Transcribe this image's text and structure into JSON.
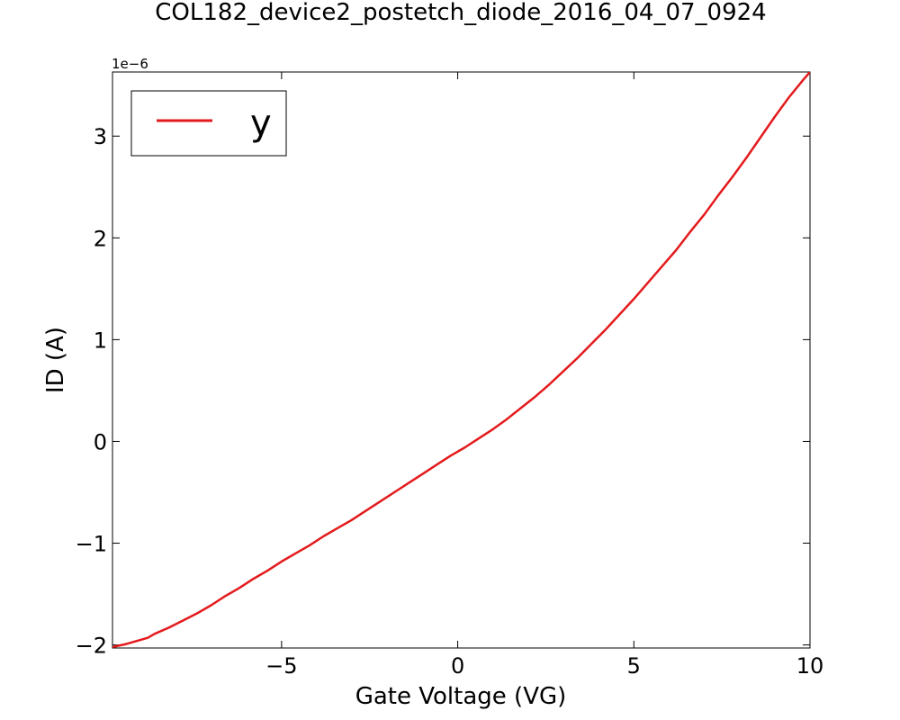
{
  "chart_data": {
    "type": "line",
    "title": "COL182_device2_postetch_diode_2016_04_07_0924",
    "xlabel": "Gate Voltage (VG)",
    "ylabel": "ID (A)",
    "y_offset_label": "1e−6",
    "xlim": [
      -9.8,
      10
    ],
    "ylim": [
      -2.03,
      3.63
    ],
    "y_scale_factor": 1e-06,
    "x_ticks": [
      {
        "value": -5,
        "label": "−5"
      },
      {
        "value": 0,
        "label": "0"
      },
      {
        "value": 5,
        "label": "5"
      },
      {
        "value": 10,
        "label": "10"
      }
    ],
    "y_ticks": [
      {
        "value": -2,
        "label": "−2"
      },
      {
        "value": -1,
        "label": "−1"
      },
      {
        "value": 0,
        "label": "0"
      },
      {
        "value": 1,
        "label": "1"
      },
      {
        "value": 2,
        "label": "2"
      },
      {
        "value": 3,
        "label": "3"
      }
    ],
    "grid": false,
    "legend_position": "top-left",
    "series": [
      {
        "name": "y",
        "color": "#e31a1c",
        "x": [
          -9.8,
          -9.4,
          -9.0,
          -8.8,
          -8.6,
          -8.2,
          -7.8,
          -7.4,
          -7.0,
          -6.6,
          -6.2,
          -5.8,
          -5.4,
          -5.0,
          -4.6,
          -4.2,
          -3.8,
          -3.4,
          -3.0,
          -2.6,
          -2.2,
          -1.8,
          -1.4,
          -1.0,
          -0.6,
          -0.2,
          0.2,
          0.6,
          1.0,
          1.4,
          1.8,
          2.2,
          2.6,
          3.0,
          3.4,
          3.8,
          4.2,
          4.6,
          5.0,
          5.4,
          5.8,
          6.2,
          6.6,
          7.0,
          7.4,
          7.8,
          8.2,
          8.6,
          9.0,
          9.4,
          9.8,
          10.0
        ],
        "y": [
          -2.02,
          -1.99,
          -1.95,
          -1.93,
          -1.89,
          -1.83,
          -1.76,
          -1.69,
          -1.61,
          -1.52,
          -1.44,
          -1.35,
          -1.27,
          -1.18,
          -1.1,
          -1.02,
          -0.93,
          -0.85,
          -0.77,
          -0.68,
          -0.59,
          -0.5,
          -0.41,
          -0.32,
          -0.23,
          -0.14,
          -0.06,
          0.03,
          0.12,
          0.22,
          0.33,
          0.44,
          0.56,
          0.69,
          0.82,
          0.96,
          1.1,
          1.25,
          1.4,
          1.56,
          1.72,
          1.88,
          2.06,
          2.23,
          2.42,
          2.6,
          2.79,
          2.99,
          3.19,
          3.38,
          3.55,
          3.63
        ]
      }
    ]
  }
}
